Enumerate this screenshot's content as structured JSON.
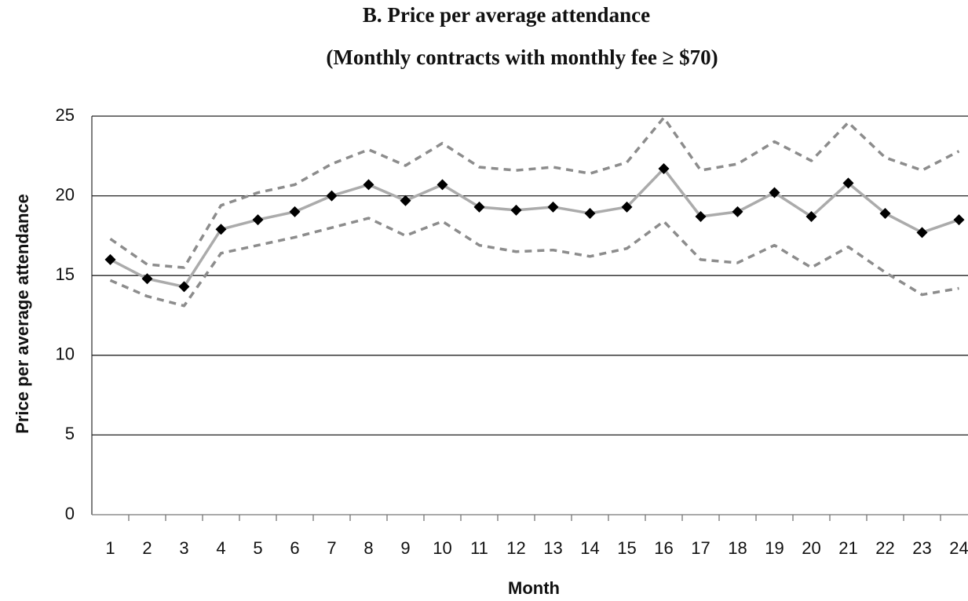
{
  "chart_data": {
    "type": "line",
    "title": "B.  Price per average attendance",
    "subtitle": "(Monthly contracts with monthly fee ≥ $70)",
    "x_label": "Month",
    "y_label": "Price per average attendance",
    "categories": [
      1,
      2,
      3,
      4,
      5,
      6,
      7,
      8,
      9,
      10,
      11,
      12,
      13,
      14,
      15,
      16,
      17,
      18,
      19,
      20,
      21,
      22,
      23,
      24
    ],
    "ylim": [
      0,
      25
    ],
    "yticks": [
      0,
      5,
      10,
      15,
      20,
      25
    ],
    "grid": true,
    "series": [
      {
        "color": "#8c8c8c",
        "style": "dashed",
        "values": [
          17.3,
          15.7,
          15.5,
          19.4,
          20.2,
          20.7,
          22.0,
          22.9,
          21.9,
          23.3,
          21.8,
          21.6,
          21.8,
          21.4,
          22.1,
          24.9,
          21.6,
          22.0,
          23.4,
          22.2,
          24.6,
          22.4,
          21.6,
          22.8
        ]
      },
      {
        "color": "#8c8c8c",
        "style": "dashed",
        "values": [
          14.7,
          13.7,
          13.1,
          16.4,
          16.9,
          17.4,
          18.0,
          18.6,
          17.5,
          18.4,
          16.9,
          16.5,
          16.6,
          16.2,
          16.7,
          18.4,
          16.0,
          15.8,
          16.9,
          15.5,
          16.8,
          15.2,
          13.8,
          14.2
        ]
      },
      {
        "color": "#ababab",
        "style": "solid",
        "marker": "diamond",
        "marker_color": "#000000",
        "values": [
          16.0,
          14.8,
          14.3,
          17.9,
          18.5,
          19.0,
          20.0,
          20.7,
          19.7,
          20.7,
          19.3,
          19.1,
          19.3,
          18.9,
          19.3,
          21.7,
          18.7,
          19.0,
          20.2,
          18.7,
          20.8,
          18.9,
          17.7,
          18.5
        ]
      }
    ]
  }
}
